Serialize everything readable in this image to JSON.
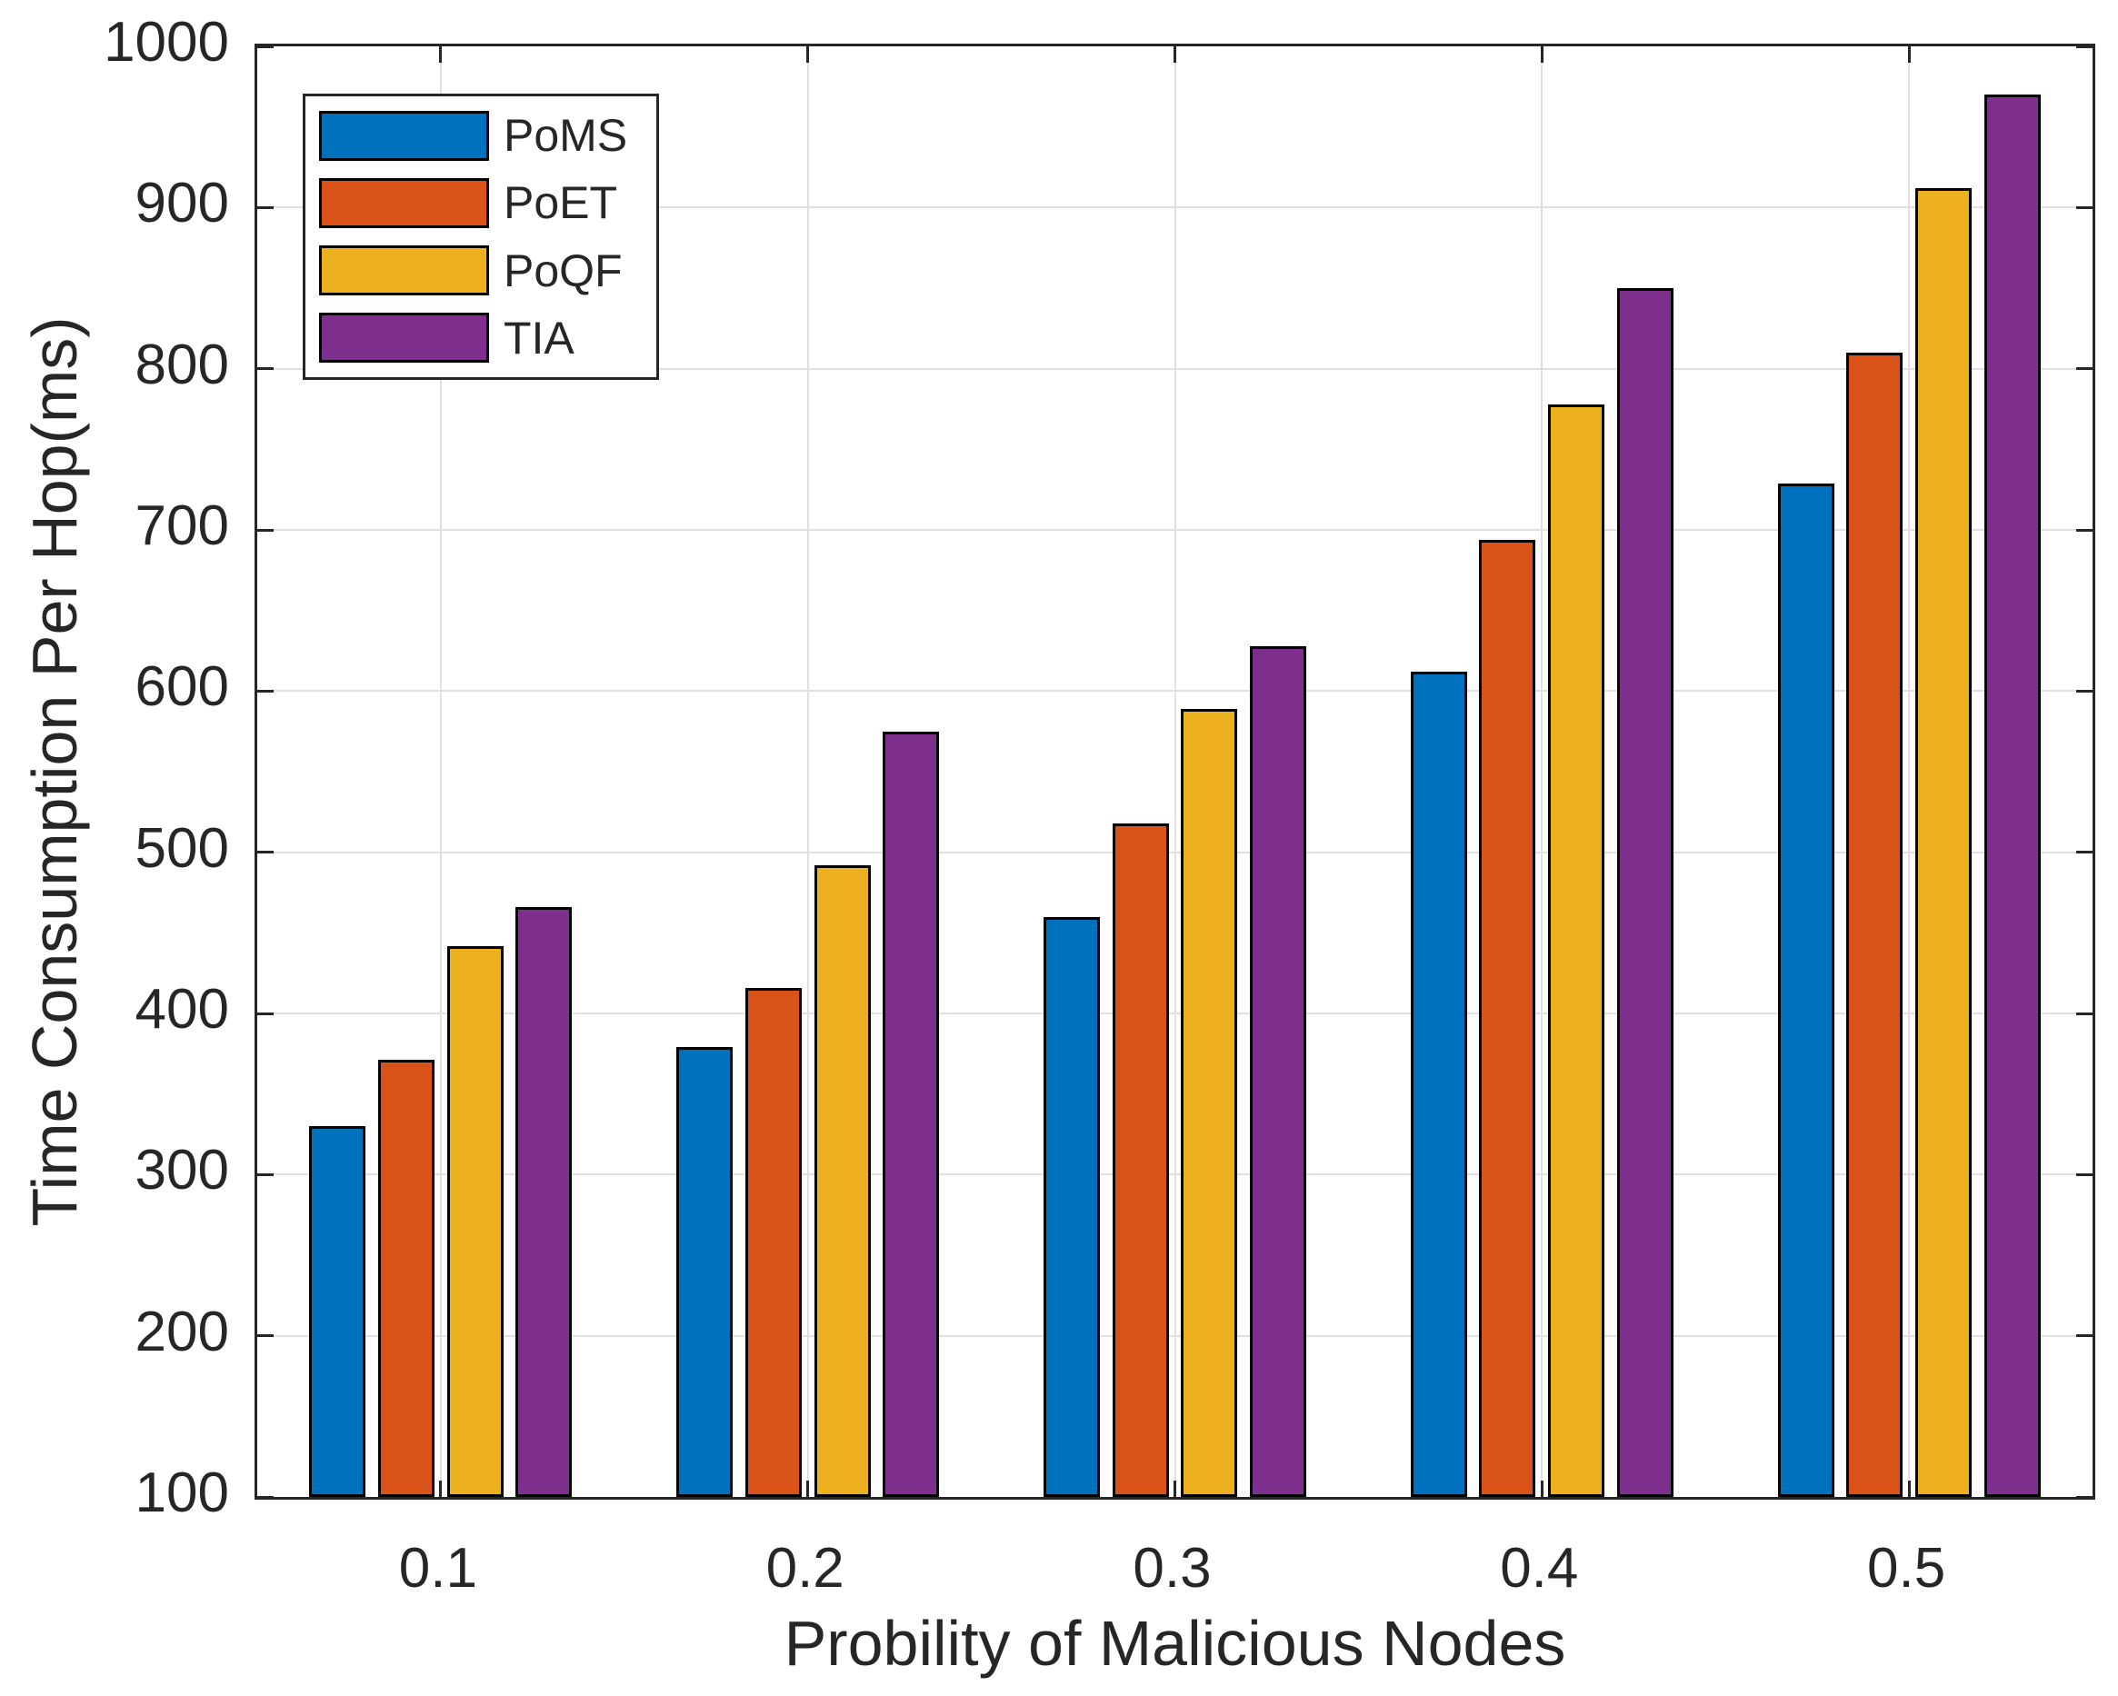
{
  "chart_data": {
    "type": "bar",
    "title": "",
    "xlabel": "Probility of Malicious Nodes",
    "ylabel": "Time Consumption Per Hop(ms)",
    "categories": [
      "0.1",
      "0.2",
      "0.3",
      "0.4",
      "0.5"
    ],
    "series": [
      {
        "name": "PoMS",
        "color": "#0072BD",
        "values": [
          330,
          379,
          460,
          612,
          729
        ]
      },
      {
        "name": "PoET",
        "color": "#D95319",
        "values": [
          371,
          416,
          518,
          694,
          810
        ]
      },
      {
        "name": "PoQF",
        "color": "#EDB120",
        "values": [
          442,
          492,
          589,
          778,
          912
        ]
      },
      {
        "name": "TIA",
        "color": "#7E2F8E",
        "values": [
          466,
          575,
          628,
          850,
          970
        ]
      }
    ],
    "ylim": [
      100,
      1000
    ],
    "yticks": [
      100,
      200,
      300,
      400,
      500,
      600,
      700,
      800,
      900,
      1000
    ],
    "grid": true,
    "legend_position": "top-left-inside",
    "bar_edge_color": "#000000",
    "axis_color": "#262626",
    "grid_color": "#E0E0E0"
  }
}
